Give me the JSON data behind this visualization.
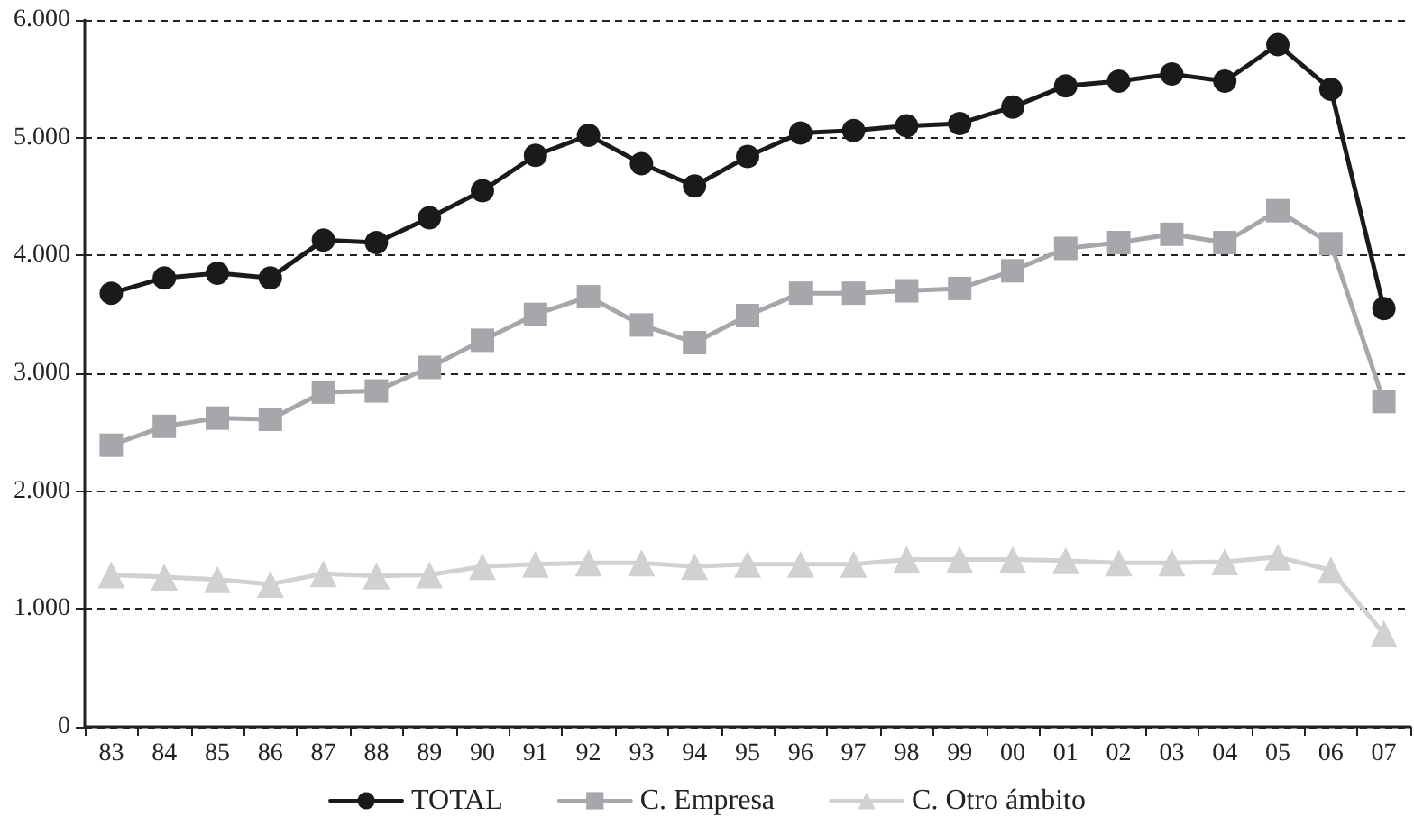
{
  "chart_data": {
    "type": "line",
    "categories": [
      "83",
      "84",
      "85",
      "86",
      "87",
      "88",
      "89",
      "90",
      "91",
      "92",
      "93",
      "94",
      "95",
      "96",
      "97",
      "98",
      "99",
      "00",
      "01",
      "02",
      "03",
      "04",
      "05",
      "06",
      "07"
    ],
    "series": [
      {
        "name": "TOTAL",
        "color": "#1a1a1a",
        "marker": "circle",
        "values": [
          3680,
          3810,
          3850,
          3810,
          4130,
          4110,
          4320,
          4550,
          4850,
          5020,
          4780,
          4590,
          4840,
          5040,
          5060,
          5100,
          5120,
          5260,
          5440,
          5480,
          5540,
          5480,
          5790,
          5410,
          3550
        ]
      },
      {
        "name": "C. Empresa",
        "color": "#a6a7aa",
        "marker": "square",
        "values": [
          2390,
          2550,
          2620,
          2610,
          2840,
          2850,
          3050,
          3280,
          3500,
          3650,
          3410,
          3260,
          3490,
          3680,
          3680,
          3700,
          3720,
          3870,
          4060,
          4110,
          4180,
          4110,
          4380,
          4100,
          2760
        ]
      },
      {
        "name": "C. Otro ámbito",
        "color": "#d0d1d3",
        "marker": "triangle",
        "values": [
          1290,
          1270,
          1250,
          1210,
          1300,
          1280,
          1290,
          1360,
          1380,
          1390,
          1390,
          1360,
          1380,
          1380,
          1380,
          1420,
          1420,
          1420,
          1410,
          1390,
          1390,
          1400,
          1440,
          1330,
          790
        ]
      }
    ],
    "ylim": [
      0,
      6000
    ],
    "yticks": [
      0,
      {
        "value": 1000,
        "label": "1.000"
      },
      {
        "value": 2000,
        "label": "2.000"
      },
      {
        "value": 3000,
        "label": "3.000"
      },
      {
        "value": 4000,
        "label": "4.000"
      },
      {
        "value": 5000,
        "label": "5.000"
      },
      {
        "value": 6000,
        "label": "6.000"
      }
    ],
    "grid": "y",
    "legend": "bottom",
    "line_style": "solid"
  }
}
